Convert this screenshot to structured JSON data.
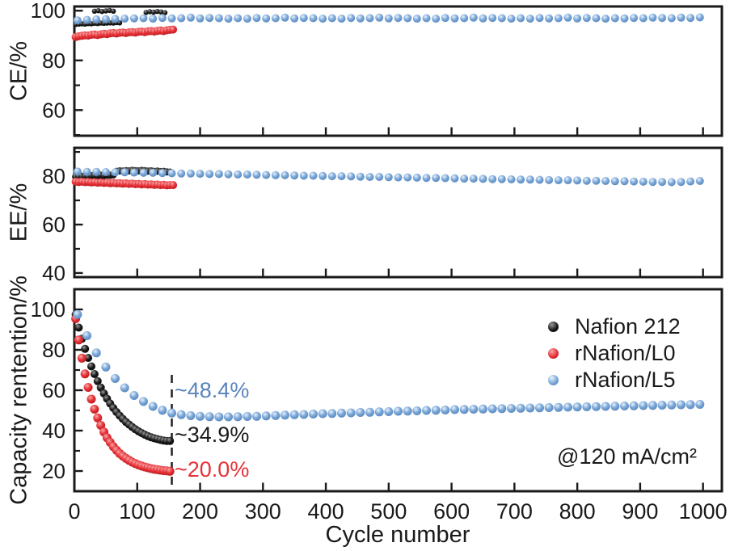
{
  "figure": {
    "xlabel": "Cycle number",
    "x_ticks": [
      0,
      100,
      200,
      300,
      400,
      500,
      600,
      700,
      800,
      900,
      1000
    ],
    "current_density": "@120 mA/cm²"
  },
  "chart_data": [
    {
      "type": "scatter",
      "panel": "CE",
      "ylabel": "CE/%",
      "ylim": [
        49.7,
        101.7
      ],
      "yticks": [
        60,
        80,
        100
      ],
      "yminors": [
        50,
        70,
        90
      ],
      "xlim": [
        0,
        1030
      ],
      "series": [
        {
          "name": "Nafion 212",
          "color": "#1a1a1a",
          "light": "#9a9a9a",
          "dark": "#000000",
          "x": [
            2,
            7,
            12,
            17,
            22,
            27,
            32,
            37,
            42,
            47,
            52,
            57,
            62,
            67,
            72,
            32,
            38,
            44,
            50,
            56,
            62,
            114,
            120,
            126,
            132,
            138,
            144
          ],
          "y": [
            94.5,
            94.6,
            94.7,
            94.6,
            94.8,
            94.7,
            94.9,
            94.8,
            95.0,
            94.9,
            95.0,
            95.1,
            95.0,
            95.2,
            95.1,
            99.8,
            100.0,
            99.7,
            99.9,
            100.1,
            99.8,
            99.3,
            99.6,
            99.4,
            99.7,
            99.5,
            99.2
          ]
        },
        {
          "name": "rNafion/L0",
          "color": "#e73137",
          "light": "#f6a9a9",
          "dark": "#a81217",
          "x": [
            2,
            7,
            12,
            17,
            22,
            27,
            32,
            37,
            42,
            47,
            52,
            57,
            62,
            67,
            72,
            77,
            82,
            87,
            92,
            97,
            102,
            107,
            112,
            117,
            122,
            127,
            132,
            137,
            142,
            147,
            152,
            157
          ],
          "y": [
            89.4,
            89.7,
            89.9,
            90.1,
            90.0,
            90.3,
            90.4,
            90.2,
            90.5,
            90.7,
            90.6,
            90.9,
            91.0,
            90.8,
            91.1,
            91.2,
            91.0,
            91.3,
            91.4,
            91.2,
            91.5,
            91.6,
            91.4,
            91.7,
            91.8,
            91.6,
            91.9,
            92.0,
            91.8,
            92.1,
            92.3,
            92.4
          ]
        },
        {
          "name": "rNafion/L5",
          "color": "#7aa7d8",
          "light": "#eaf2fb",
          "dark": "#4d7cb3",
          "x": [
            5,
            20,
            35,
            50,
            65,
            80,
            95,
            110,
            125,
            140,
            155,
            170,
            185,
            200,
            215,
            230,
            245,
            260,
            275,
            290,
            305,
            320,
            335,
            350,
            365,
            380,
            395,
            410,
            425,
            440,
            455,
            470,
            485,
            500,
            515,
            530,
            545,
            560,
            575,
            590,
            605,
            620,
            635,
            650,
            665,
            680,
            695,
            710,
            725,
            740,
            755,
            770,
            785,
            800,
            815,
            830,
            845,
            860,
            875,
            890,
            905,
            920,
            935,
            950,
            965,
            980,
            995
          ],
          "y": [
            96.1,
            96.3,
            96.5,
            96.6,
            96.7,
            96.8,
            96.9,
            97.0,
            96.8,
            97.1,
            96.9,
            97.0,
            97.2,
            96.9,
            97.1,
            97.0,
            96.8,
            97.0,
            96.8,
            97.1,
            96.9,
            97.0,
            97.2,
            96.9,
            97.1,
            97.0,
            96.8,
            97.0,
            96.8,
            97.1,
            96.9,
            97.0,
            97.2,
            96.9,
            97.1,
            97.0,
            96.8,
            97.0,
            96.8,
            97.1,
            96.9,
            97.0,
            97.2,
            96.9,
            97.1,
            97.0,
            96.8,
            97.0,
            96.8,
            97.1,
            96.9,
            97.0,
            97.2,
            96.9,
            97.1,
            97.0,
            96.8,
            97.0,
            96.9,
            97.1,
            97.0,
            97.2,
            97.1,
            97.0,
            97.2,
            97.1,
            97.3
          ]
        }
      ]
    },
    {
      "type": "scatter",
      "panel": "EE",
      "ylabel": "EE/%",
      "ylim": [
        38.3,
        91.7
      ],
      "yticks": [
        40,
        60,
        80
      ],
      "yminors": [
        50,
        70,
        90
      ],
      "xlim": [
        0,
        1030
      ],
      "series": [
        {
          "name": "Nafion 212",
          "color": "#1a1a1a",
          "light": "#9a9a9a",
          "dark": "#000000",
          "x": [
            2,
            7,
            12,
            17,
            22,
            27,
            32,
            37,
            42,
            47,
            52,
            57,
            62,
            67,
            72,
            77,
            82,
            87,
            92,
            97,
            102,
            107,
            112,
            117,
            122,
            127,
            132,
            137,
            142,
            147,
            152
          ],
          "y": [
            79.8,
            79.9,
            80.0,
            80.1,
            80.0,
            80.2,
            80.3,
            80.2,
            80.4,
            80.3,
            80.5,
            80.4,
            80.6,
            82.0,
            82.2,
            82.1,
            82.3,
            82.2,
            82.4,
            82.3,
            82.2,
            82.4,
            82.3,
            82.1,
            82.2,
            82.0,
            82.1,
            81.9,
            82.0,
            81.8,
            81.7
          ]
        },
        {
          "name": "rNafion/L0",
          "color": "#e73137",
          "light": "#f6a9a9",
          "dark": "#a81217",
          "x": [
            2,
            7,
            12,
            17,
            22,
            27,
            32,
            37,
            42,
            47,
            52,
            57,
            62,
            67,
            72,
            77,
            82,
            87,
            92,
            97,
            102,
            107,
            112,
            117,
            122,
            127,
            132,
            137,
            142,
            147,
            152,
            157
          ],
          "y": [
            77.7,
            77.6,
            77.7,
            77.5,
            77.6,
            77.4,
            77.5,
            77.3,
            77.4,
            77.2,
            77.3,
            77.1,
            77.2,
            77.0,
            77.1,
            76.9,
            77.0,
            76.8,
            76.9,
            76.7,
            76.8,
            76.6,
            76.7,
            76.5,
            76.6,
            76.4,
            76.5,
            76.3,
            76.4,
            76.2,
            76.3,
            76.3
          ]
        },
        {
          "name": "rNafion/L5",
          "color": "#7aa7d8",
          "light": "#eaf2fb",
          "dark": "#4d7cb3",
          "x": [
            5,
            20,
            35,
            50,
            65,
            80,
            95,
            110,
            125,
            140,
            155,
            170,
            185,
            200,
            215,
            230,
            245,
            260,
            275,
            290,
            305,
            320,
            335,
            350,
            365,
            380,
            395,
            410,
            425,
            440,
            455,
            470,
            485,
            500,
            515,
            530,
            545,
            560,
            575,
            590,
            605,
            620,
            635,
            650,
            665,
            680,
            695,
            710,
            725,
            740,
            755,
            770,
            785,
            800,
            815,
            830,
            845,
            860,
            875,
            890,
            905,
            920,
            935,
            950,
            965,
            980,
            995
          ],
          "y": [
            81.9,
            81.8,
            81.8,
            81.7,
            81.6,
            81.6,
            81.5,
            81.4,
            81.4,
            81.3,
            81.2,
            81.1,
            81.1,
            81.0,
            80.9,
            80.9,
            80.8,
            80.7,
            80.7,
            80.6,
            80.5,
            80.4,
            80.4,
            80.3,
            80.2,
            80.2,
            80.1,
            80.0,
            80.0,
            79.9,
            79.8,
            79.7,
            79.7,
            79.6,
            79.5,
            79.5,
            79.4,
            79.3,
            79.3,
            79.2,
            79.1,
            79.0,
            79.0,
            78.9,
            78.8,
            78.8,
            78.7,
            78.6,
            78.6,
            78.5,
            78.4,
            78.3,
            78.3,
            78.2,
            78.1,
            78.1,
            78.0,
            77.9,
            77.9,
            77.8,
            77.7,
            77.6,
            77.6,
            77.5,
            77.6,
            77.8,
            78.0
          ]
        }
      ]
    },
    {
      "type": "scatter",
      "panel": "Capacity retention",
      "ylabel": "Capacity rentention/%",
      "ylim": [
        10,
        110
      ],
      "yticks": [
        20,
        40,
        60,
        80,
        100
      ],
      "yminors": [
        30,
        50,
        70,
        90
      ],
      "xlim": [
        0,
        1030
      ],
      "dashed_line_x": 155,
      "annotations": [
        {
          "text": "~48.4%",
          "color": "#5b84bb"
        },
        {
          "text": "~34.9%",
          "color": "#1a1a1a"
        },
        {
          "text": "~20.0%",
          "color": "#e73137"
        }
      ],
      "series": [
        {
          "name": "Nafion 212",
          "color": "#1a1a1a",
          "light": "#9a9a9a",
          "dark": "#000000",
          "x": [
            2,
            7,
            12,
            17,
            22,
            27,
            32,
            37,
            42,
            47,
            52,
            57,
            62,
            67,
            72,
            77,
            82,
            87,
            92,
            97,
            102,
            107,
            112,
            117,
            122,
            127,
            132,
            137,
            142,
            147,
            152
          ],
          "y": [
            97.5,
            91.0,
            85.5,
            80.5,
            76.0,
            71.8,
            68.0,
            64.5,
            61.3,
            58.4,
            55.8,
            53.4,
            51.2,
            49.2,
            47.4,
            45.8,
            44.3,
            43.0,
            41.8,
            40.7,
            39.7,
            38.8,
            38.0,
            37.3,
            36.7,
            36.2,
            35.8,
            35.4,
            35.1,
            34.9,
            34.9
          ]
        },
        {
          "name": "rNafion/L0",
          "color": "#e73137",
          "light": "#f6a9a9",
          "dark": "#a81217",
          "x": [
            2,
            7,
            12,
            17,
            22,
            27,
            32,
            37,
            42,
            47,
            52,
            57,
            62,
            67,
            72,
            77,
            82,
            87,
            92,
            97,
            102,
            107,
            112,
            117,
            122,
            127,
            132,
            137,
            142,
            147,
            152
          ],
          "y": [
            95.4,
            84.9,
            75.9,
            68.1,
            61.4,
            55.6,
            50.6,
            46.3,
            42.6,
            39.3,
            36.5,
            34.2,
            32.1,
            30.3,
            28.7,
            27.4,
            26.3,
            25.3,
            24.4,
            23.7,
            23.0,
            22.5,
            22.0,
            21.6,
            21.2,
            20.9,
            20.7,
            20.4,
            20.2,
            20.1,
            19.9
          ]
        },
        {
          "name": "rNafion/L5",
          "color": "#7aa7d8",
          "light": "#eaf2fb",
          "dark": "#4d7cb3",
          "x": [
            5,
            20,
            35,
            50,
            65,
            80,
            95,
            110,
            125,
            140,
            155,
            170,
            185,
            200,
            215,
            230,
            245,
            260,
            275,
            290,
            305,
            320,
            335,
            350,
            365,
            380,
            395,
            410,
            425,
            440,
            455,
            470,
            485,
            500,
            515,
            530,
            545,
            560,
            575,
            590,
            605,
            620,
            635,
            650,
            665,
            680,
            695,
            710,
            725,
            740,
            755,
            770,
            785,
            800,
            815,
            830,
            845,
            860,
            875,
            890,
            905,
            920,
            935,
            950,
            965,
            980,
            995
          ],
          "y": [
            97.5,
            87.0,
            78.5,
            71.5,
            65.8,
            61.2,
            57.4,
            54.4,
            52.0,
            50.1,
            48.7,
            47.9,
            47.4,
            47.1,
            46.9,
            46.8,
            46.8,
            46.9,
            47.0,
            47.1,
            47.3,
            47.5,
            47.7,
            47.9,
            48.0,
            48.2,
            48.4,
            48.5,
            48.7,
            48.8,
            49.0,
            49.1,
            49.3,
            49.4,
            49.6,
            49.7,
            49.8,
            50.0,
            50.1,
            50.2,
            50.4,
            50.5,
            50.6,
            50.7,
            50.8,
            50.9,
            51.0,
            51.1,
            51.2,
            51.3,
            51.4,
            51.5,
            51.6,
            51.7,
            51.8,
            51.9,
            52.0,
            52.1,
            52.2,
            52.3,
            52.4,
            52.5,
            52.6,
            52.7,
            52.8,
            52.9,
            53.0
          ]
        }
      ]
    }
  ]
}
